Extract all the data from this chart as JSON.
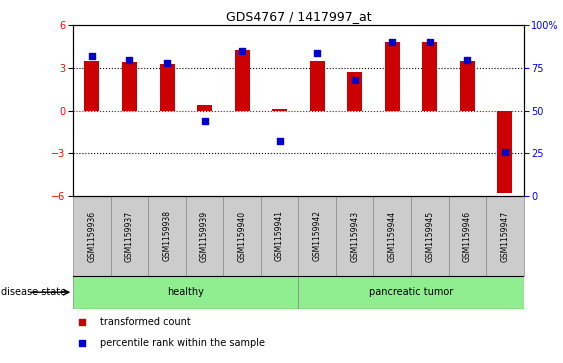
{
  "title": "GDS4767 / 1417997_at",
  "samples": [
    "GSM1159936",
    "GSM1159937",
    "GSM1159938",
    "GSM1159939",
    "GSM1159940",
    "GSM1159941",
    "GSM1159942",
    "GSM1159943",
    "GSM1159944",
    "GSM1159945",
    "GSM1159946",
    "GSM1159947"
  ],
  "transformed_count": [
    3.5,
    3.4,
    3.3,
    0.4,
    4.3,
    0.1,
    3.5,
    2.7,
    4.8,
    4.8,
    3.5,
    -5.8
  ],
  "percentile_rank": [
    82,
    80,
    78,
    44,
    85,
    32,
    84,
    68,
    90,
    90,
    80,
    26
  ],
  "healthy_range": [
    0,
    5
  ],
  "tumor_range": [
    6,
    11
  ],
  "ylim": [
    -6,
    6
  ],
  "yticks": [
    -6,
    -3,
    0,
    3,
    6
  ],
  "right_ylim": [
    0,
    100
  ],
  "right_yticks": [
    0,
    25,
    50,
    75,
    100
  ],
  "right_yticklabels": [
    "0",
    "25",
    "50",
    "75",
    "100%"
  ],
  "bar_color": "#cc0000",
  "scatter_color": "#0000cc",
  "hline_color": "#cc0000",
  "dotted_color": "#000000",
  "legend_items": [
    "transformed count",
    "percentile rank within the sample"
  ],
  "legend_colors": [
    "#cc0000",
    "#0000cc"
  ],
  "disease_state_label": "disease state",
  "group_label_healthy": "healthy",
  "group_label_tumor": "pancreatic tumor",
  "sample_box_color": "#cccccc",
  "plot_bg": "#ffffff",
  "group_bg": "#90ee90"
}
